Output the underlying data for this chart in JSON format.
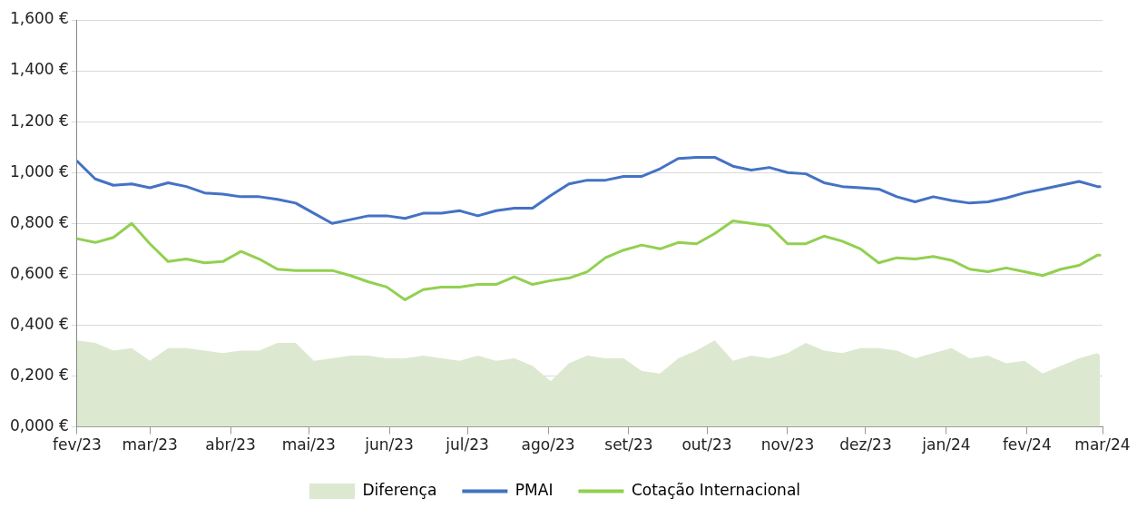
{
  "chart_data": {
    "type": "line",
    "x": [
      "2023-02-01",
      "2023-02-08",
      "2023-02-15",
      "2023-02-22",
      "2023-03-01",
      "2023-03-08",
      "2023-03-15",
      "2023-03-22",
      "2023-03-29",
      "2023-04-05",
      "2023-04-12",
      "2023-04-19",
      "2023-04-26",
      "2023-05-03",
      "2023-05-10",
      "2023-05-17",
      "2023-05-24",
      "2023-05-31",
      "2023-06-07",
      "2023-06-14",
      "2023-06-21",
      "2023-06-28",
      "2023-07-05",
      "2023-07-12",
      "2023-07-19",
      "2023-07-26",
      "2023-08-02",
      "2023-08-09",
      "2023-08-16",
      "2023-08-23",
      "2023-08-30",
      "2023-09-06",
      "2023-09-13",
      "2023-09-20",
      "2023-09-27",
      "2023-10-04",
      "2023-10-11",
      "2023-10-18",
      "2023-10-25",
      "2023-11-01",
      "2023-11-08",
      "2023-11-15",
      "2023-11-22",
      "2023-11-29",
      "2023-12-06",
      "2023-12-13",
      "2023-12-20",
      "2023-12-27",
      "2024-01-03",
      "2024-01-10",
      "2024-01-17",
      "2024-01-24",
      "2024-01-31",
      "2024-02-07",
      "2024-02-14",
      "2024-02-21",
      "2024-02-28",
      "2024-02-29"
    ],
    "series": [
      {
        "name": "Diferença",
        "type": "area",
        "color": "#dde8d0",
        "values": [
          0.34,
          0.33,
          0.3,
          0.31,
          0.26,
          0.31,
          0.31,
          0.3,
          0.29,
          0.3,
          0.3,
          0.33,
          0.33,
          0.26,
          0.27,
          0.28,
          0.28,
          0.27,
          0.27,
          0.28,
          0.27,
          0.26,
          0.28,
          0.26,
          0.27,
          0.24,
          0.18,
          0.25,
          0.28,
          0.27,
          0.27,
          0.22,
          0.21,
          0.27,
          0.3,
          0.34,
          0.26,
          0.28,
          0.27,
          0.29,
          0.33,
          0.3,
          0.29,
          0.31,
          0.31,
          0.3,
          0.27,
          0.29,
          0.31,
          0.27,
          0.28,
          0.25,
          0.26,
          0.21,
          0.24,
          0.27,
          0.29,
          0.28
        ]
      },
      {
        "name": "PMAI",
        "type": "line",
        "color": "#4472c4",
        "values": [
          1.045,
          0.975,
          0.95,
          0.955,
          0.94,
          0.96,
          0.945,
          0.92,
          0.915,
          0.905,
          0.905,
          0.895,
          0.88,
          0.84,
          0.8,
          0.815,
          0.83,
          0.83,
          0.82,
          0.84,
          0.84,
          0.85,
          0.83,
          0.85,
          0.86,
          0.86,
          0.91,
          0.955,
          0.97,
          0.97,
          0.985,
          0.985,
          1.015,
          1.055,
          1.06,
          1.06,
          1.025,
          1.01,
          1.02,
          1.0,
          0.995,
          0.96,
          0.945,
          0.94,
          0.935,
          0.905,
          0.885,
          0.905,
          0.89,
          0.88,
          0.885,
          0.9,
          0.92,
          0.935,
          0.95,
          0.965,
          0.945,
          0.945
        ]
      },
      {
        "name": "Cotação Internacional",
        "type": "line",
        "color": "#92d050",
        "values": [
          0.74,
          0.725,
          0.745,
          0.8,
          0.72,
          0.65,
          0.66,
          0.645,
          0.65,
          0.69,
          0.66,
          0.62,
          0.615,
          0.615,
          0.615,
          0.595,
          0.57,
          0.55,
          0.5,
          0.54,
          0.55,
          0.55,
          0.56,
          0.56,
          0.59,
          0.56,
          0.575,
          0.585,
          0.61,
          0.665,
          0.695,
          0.715,
          0.7,
          0.725,
          0.72,
          0.76,
          0.81,
          0.8,
          0.79,
          0.72,
          0.72,
          0.75,
          0.73,
          0.7,
          0.645,
          0.665,
          0.66,
          0.67,
          0.655,
          0.62,
          0.61,
          0.625,
          0.61,
          0.595,
          0.62,
          0.635,
          0.675,
          0.675
        ]
      }
    ],
    "xlim": [
      "2023-02-01",
      "2024-03-01"
    ],
    "xticks": [
      {
        "value": "2023-02-01",
        "label": "fev/23"
      },
      {
        "value": "2023-03-01",
        "label": "mar/23"
      },
      {
        "value": "2023-04-01",
        "label": "abr/23"
      },
      {
        "value": "2023-05-01",
        "label": "mai/23"
      },
      {
        "value": "2023-06-01",
        "label": "jun/23"
      },
      {
        "value": "2023-07-01",
        "label": "jul/23"
      },
      {
        "value": "2023-08-01",
        "label": "ago/23"
      },
      {
        "value": "2023-09-01",
        "label": "set/23"
      },
      {
        "value": "2023-10-01",
        "label": "out/23"
      },
      {
        "value": "2023-11-01",
        "label": "nov/23"
      },
      {
        "value": "2023-12-01",
        "label": "dez/23"
      },
      {
        "value": "2024-01-01",
        "label": "jan/24"
      },
      {
        "value": "2024-02-01",
        "label": "fev/24"
      },
      {
        "value": "2024-03-01",
        "label": "mar/24"
      }
    ],
    "ylim": [
      0,
      1.6
    ],
    "yticks": [
      {
        "value": 0,
        "label": "0,000 €"
      },
      {
        "value": 0.2,
        "label": "0,200 €"
      },
      {
        "value": 0.4,
        "label": "0,400 €"
      },
      {
        "value": 0.6,
        "label": "0,600 €"
      },
      {
        "value": 0.8,
        "label": "0,800 €"
      },
      {
        "value": 1.0,
        "label": "1,000 €"
      },
      {
        "value": 1.2,
        "label": "1,200 €"
      },
      {
        "value": 1.4,
        "label": "1,400 €"
      },
      {
        "value": 1.6,
        "label": "1,600 €"
      }
    ],
    "grid": "y",
    "legend": "bottom",
    "marker": "none",
    "line_style": "solid"
  }
}
